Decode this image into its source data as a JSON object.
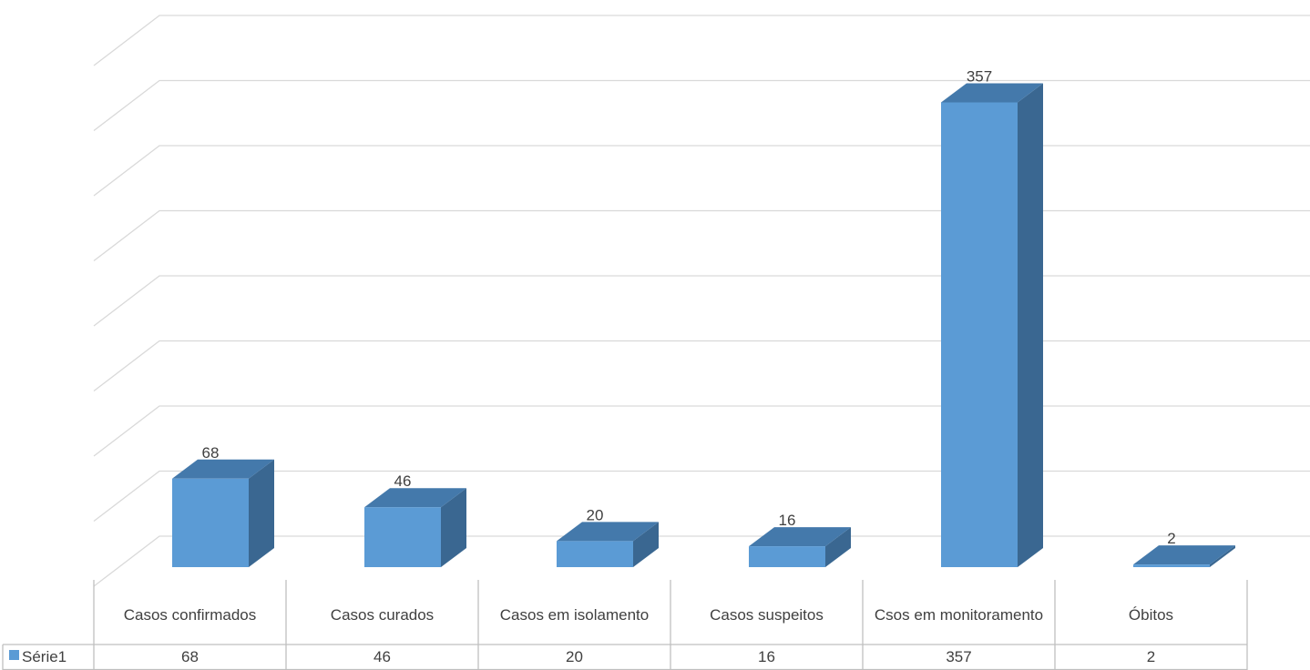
{
  "chart_data": {
    "type": "bar3d",
    "categories": [
      "Casos confirmados",
      "Casos curados",
      "Casos em isolamento",
      "Casos suspeitos",
      "Csos em monitoramento",
      "Óbitos"
    ],
    "series": [
      {
        "name": "Série1",
        "color": "#5b9bd5",
        "values": [
          68,
          46,
          20,
          16,
          357,
          2
        ]
      }
    ],
    "ylim": [
      0,
      400
    ],
    "yticks": [
      0,
      50,
      100,
      150,
      200,
      250,
      300,
      350,
      400
    ],
    "grid": true
  }
}
